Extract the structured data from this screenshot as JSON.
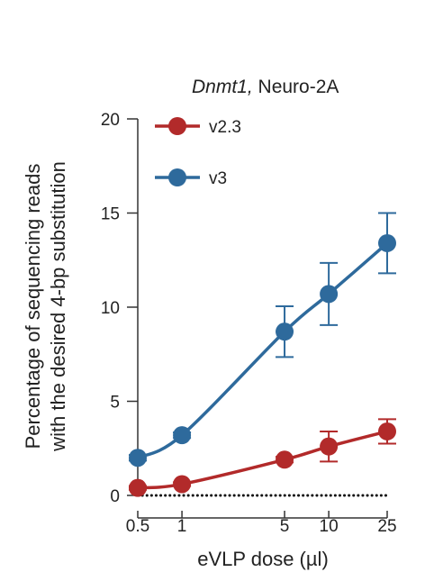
{
  "chart_data": {
    "type": "line",
    "title": {
      "gene": "Dnmt1,",
      "cell_line": "Neuro-2A"
    },
    "xlabel": "eVLP dose (µl)",
    "ylabel": [
      "Percentage of sequencing reads",
      "with the desired 4-bp substitution"
    ],
    "x_scale": "log",
    "x": [
      0.5,
      1,
      5,
      10,
      25
    ],
    "x_tick_labels": [
      "0.5",
      "1",
      "5",
      "10",
      "25"
    ],
    "ylim": [
      0,
      20
    ],
    "y_ticks": [
      0,
      5,
      10,
      15,
      20
    ],
    "y_tick_labels": [
      "0",
      "5",
      "10",
      "15",
      "20"
    ],
    "baseline": {
      "y": 0,
      "style": "dotted"
    },
    "grid": false,
    "legend_position": "top-left",
    "series": [
      {
        "name": "v2.3",
        "color": "#b22a2a",
        "values": [
          0.4,
          0.6,
          1.9,
          2.6,
          3.4
        ],
        "error": [
          0.1,
          0.1,
          0.15,
          0.8,
          0.65
        ]
      },
      {
        "name": "v3",
        "color": "#2e6a9c",
        "values": [
          2.0,
          3.2,
          8.7,
          10.7,
          13.4
        ],
        "error": [
          0.15,
          0.15,
          1.35,
          1.65,
          1.6
        ]
      }
    ]
  }
}
